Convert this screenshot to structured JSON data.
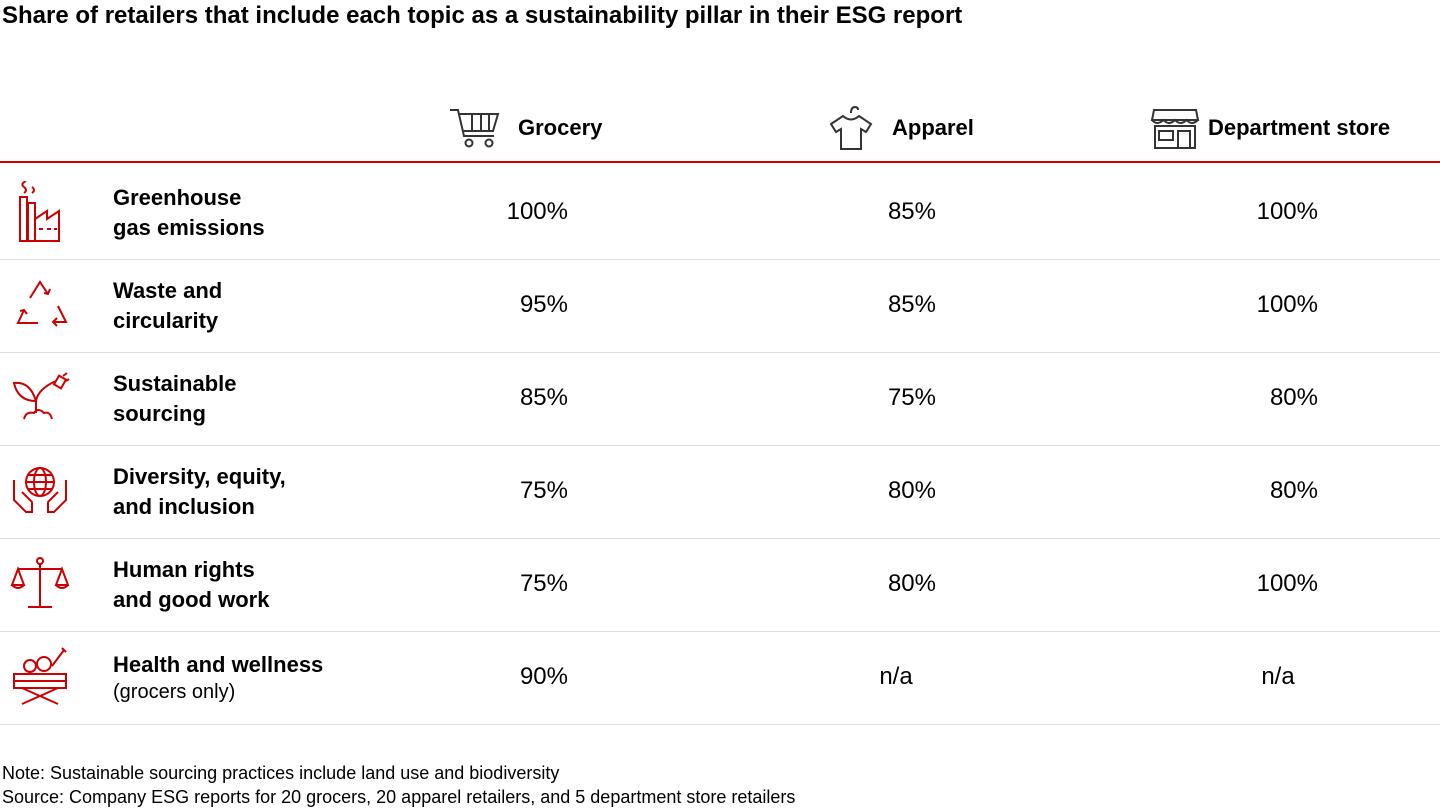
{
  "title": "Share of retailers that include each topic as a sustainability pillar in their ESG report",
  "colors": {
    "accent": "#cc0000",
    "row_divider": "#dddddd",
    "text": "#000000"
  },
  "chart_data": {
    "type": "table",
    "columns": [
      {
        "label": "Grocery",
        "icon": "shopping-cart-icon"
      },
      {
        "label": "Apparel",
        "icon": "tshirt-hanger-icon"
      },
      {
        "label": "Department store",
        "icon": "storefront-icon"
      }
    ],
    "rows": [
      {
        "label_line1": "Greenhouse",
        "label_line2": "gas emissions",
        "sublabel": "",
        "icon": "factory-icon",
        "values": [
          "100%",
          "85%",
          "100%"
        ]
      },
      {
        "label_line1": "Waste and",
        "label_line2": "circularity",
        "sublabel": "",
        "icon": "recycle-icon",
        "values": [
          "95%",
          "85%",
          "100%"
        ]
      },
      {
        "label_line1": "Sustainable",
        "label_line2": "sourcing",
        "sublabel": "",
        "icon": "plant-plug-icon",
        "values": [
          "85%",
          "75%",
          "80%"
        ]
      },
      {
        "label_line1": "Diversity, equity,",
        "label_line2": "and inclusion",
        "sublabel": "",
        "icon": "hands-globe-icon",
        "values": [
          "75%",
          "80%",
          "80%"
        ]
      },
      {
        "label_line1": "Human rights",
        "label_line2": "and good work",
        "sublabel": "",
        "icon": "scales-icon",
        "values": [
          "75%",
          "80%",
          "100%"
        ]
      },
      {
        "label_line1": "Health and wellness",
        "label_line2": "",
        "sublabel": "(grocers only)",
        "icon": "produce-crate-icon",
        "values": [
          "90%",
          "n/a",
          "n/a"
        ]
      }
    ]
  },
  "notes": {
    "note": "Note: Sustainable sourcing practices include land use and biodiversity",
    "source": "Source: Company ESG reports for 20 grocers, 20 apparel retailers, and 5 department store retailers"
  }
}
